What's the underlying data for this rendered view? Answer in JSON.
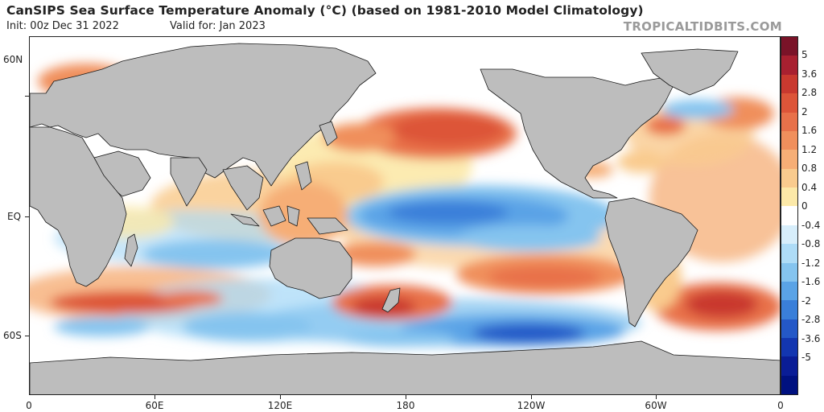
{
  "header": {
    "title": "CanSIPS Sea Surface Temperature Anomaly (°C) (based on 1981-2010 Model Climatology)",
    "init": "Init: 00z Dec 31 2022",
    "valid": "Valid for: Jan 2023",
    "brand": "TROPICALTIDBITS.COM"
  },
  "axes": {
    "lat_labels": [
      "60N",
      "EQ",
      "60S"
    ],
    "lon_labels": [
      "0",
      "60E",
      "120E",
      "180",
      "120W",
      "60W",
      "0"
    ]
  },
  "colorbar": {
    "labels": [
      "5",
      "3.6",
      "2.8",
      "2",
      "1.6",
      "1.2",
      "0.8",
      "0.4",
      "0",
      "-0.4",
      "-0.8",
      "-1.2",
      "-1.6",
      "-2",
      "-2.8",
      "-3.6",
      "-5"
    ],
    "colors": [
      "#7a1328",
      "#a82030",
      "#c9392f",
      "#dd5539",
      "#e8714a",
      "#f08f5c",
      "#f6ae76",
      "#f9cb8e",
      "#fce9a8",
      "#ffffff",
      "#d7eefb",
      "#aedcf7",
      "#85c4ef",
      "#5aa3e6",
      "#3a7fd9",
      "#2458c7",
      "#1336b0",
      "#0a1d96",
      "#001180"
    ]
  },
  "map": {
    "land_color": "#bdbdbd",
    "warm_anomaly_color": "#e8714a",
    "cool_anomaly_color": "#3a7fd9"
  }
}
